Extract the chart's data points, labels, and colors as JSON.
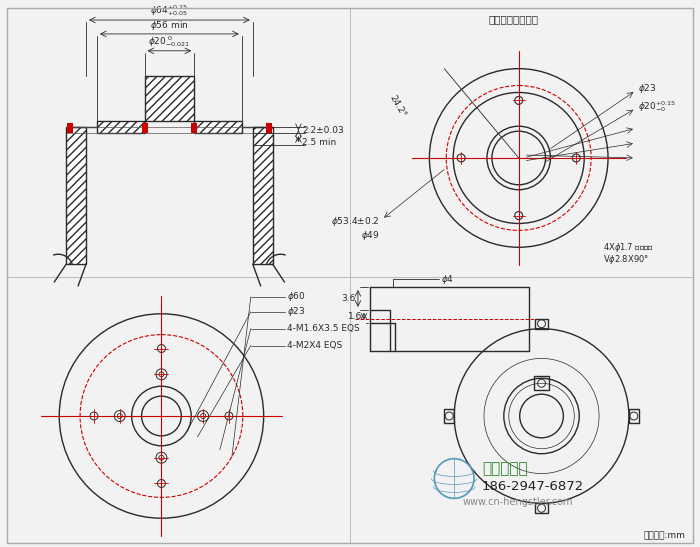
{
  "bg_color": "#f2f2f2",
  "line_color": "#2a2a2a",
  "red_color": "#cc0000",
  "title_top_right": "动盘轴向螺栓安装",
  "unit_label": "尺寸单位:mm",
  "company_name": "西安德伍拓",
  "phone": "186-2947-6872",
  "website": "www.cn-hengstler.com",
  "globe_color": "#5599bb",
  "green_color": "#338833"
}
